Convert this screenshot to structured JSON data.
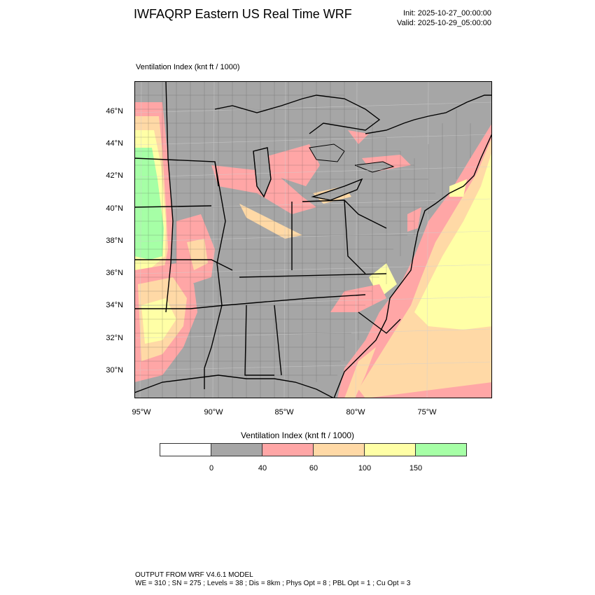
{
  "header": {
    "title": "IWFAQRP Eastern US Real Time WRF",
    "init": "Init: 2025-10-27_00:00:00",
    "valid": "Valid: 2025-10-29_05:00:00"
  },
  "field_label": "Ventilation Index   (knt ft / 1000)",
  "map": {
    "lat_labels": [
      "46°N",
      "44°N",
      "42°N",
      "40°N",
      "38°N",
      "36°N",
      "34°N",
      "32°N",
      "30°N"
    ],
    "lon_labels": [
      "95°W",
      "90°W",
      "85°W",
      "80°W",
      "75°W"
    ],
    "colors": {
      "land_gray": "#a6a6a6",
      "pink": "#ffa6a6",
      "orange": "#ffd9a6",
      "yellow": "#ffffa6",
      "green": "#a6ffa6"
    }
  },
  "colorbar": {
    "title": "Ventilation Index  (knt ft / 1000)",
    "colors": [
      "#ffffff",
      "#a6a6a6",
      "#ffa6a6",
      "#ffd9a6",
      "#ffffa6",
      "#a6ffa6"
    ],
    "labels": [
      "0",
      "40",
      "60",
      "100",
      "150"
    ]
  },
  "footer": {
    "line1": "OUTPUT FROM WRF V4.6.1 MODEL",
    "line2": "WE = 310 ; SN = 275 ; Levels = 38 ; Dis = 8km ; Phys Opt = 8 ; PBL Opt = 1 ; Cu Opt = 3"
  }
}
